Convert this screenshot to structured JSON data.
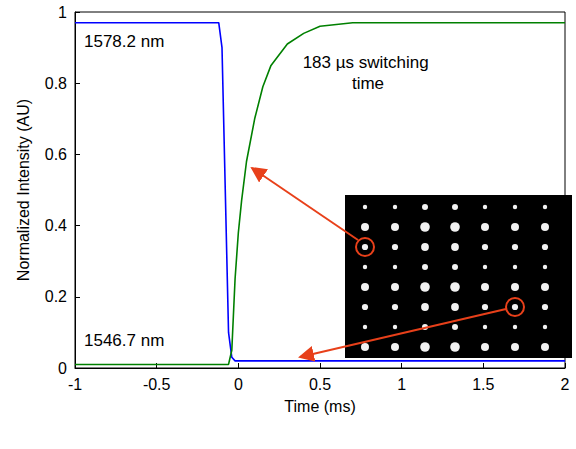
{
  "chart_data": {
    "type": "line",
    "xlabel": "Time (ms)",
    "ylabel": "Normalized Intensity (AU)",
    "annotations": [
      "1578.2 nm",
      "183 µs switching time",
      "1546.7 nm"
    ],
    "x": [
      -1,
      -0.5,
      -0.12,
      -0.1,
      -0.08,
      -0.06,
      -0.04,
      -0.02,
      0,
      0.02,
      0.05,
      0.1,
      0.15,
      0.2,
      0.3,
      0.4,
      0.5,
      0.7,
      1,
      1.5,
      2
    ],
    "series": [
      {
        "color": "#0000ff",
        "values": [
          0.97,
          0.97,
          0.97,
          0.9,
          0.5,
          0.1,
          0.03,
          0.02,
          0.02,
          0.02,
          0.02,
          0.02,
          0.02,
          0.02,
          0.02,
          0.02,
          0.02,
          0.02,
          0.02,
          0.02,
          0.02
        ]
      },
      {
        "color": "#008000",
        "values": [
          0.01,
          0.01,
          0.01,
          0.01,
          0.01,
          0.01,
          0.05,
          0.25,
          0.38,
          0.47,
          0.58,
          0.7,
          0.79,
          0.85,
          0.91,
          0.94,
          0.96,
          0.97,
          0.97,
          0.97,
          0.97
        ]
      }
    ],
    "xlim": [
      -1,
      2
    ],
    "ylim": [
      0,
      1
    ],
    "xticks": [
      -1,
      -0.5,
      0,
      0.5,
      1,
      1.5,
      2
    ],
    "yticks": [
      0,
      0.2,
      0.4,
      0.6,
      0.8,
      1
    ],
    "grid": false
  }
}
